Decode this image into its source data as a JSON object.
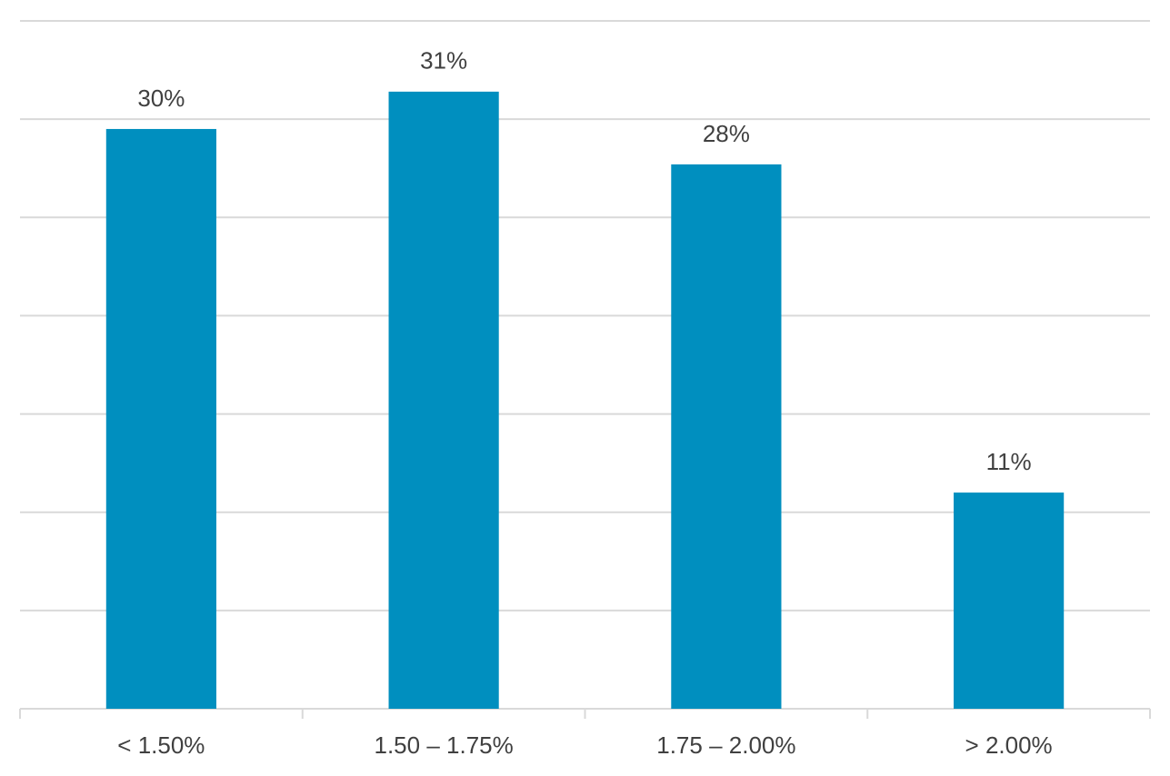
{
  "chart_data": {
    "type": "bar",
    "categories": [
      "< 1.50%",
      "1.50 – 1.75%",
      "1.75 – 2.00%",
      "> 2.00%"
    ],
    "values": [
      29.5,
      31.4,
      27.7,
      11.0
    ],
    "value_labels": [
      "30%",
      "31%",
      "28%",
      "11%"
    ],
    "color": "#008fbf",
    "ylim": [
      0,
      35
    ],
    "yticks": [
      0,
      5,
      10,
      15,
      20,
      25,
      30,
      35
    ],
    "grid": true
  }
}
